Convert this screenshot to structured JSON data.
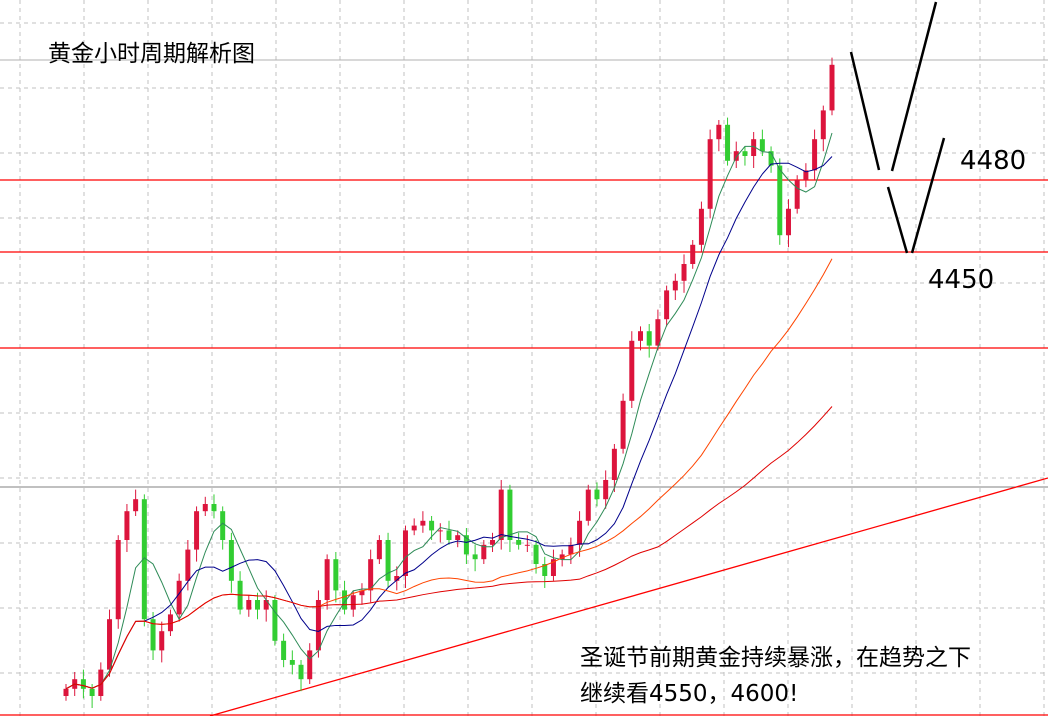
{
  "title": "黄金小时周期解析图",
  "levels": {
    "upper": "4480",
    "lower": "4450"
  },
  "notes": [
    "圣诞节前期黄金持续暴涨，在趋势之下",
    "继续看4550，4600!"
  ],
  "colors": {
    "up": "#dc143c",
    "down": "#32cd32",
    "ma_fast": "#2e8b57",
    "ma_mid": "#00008b",
    "ma_slow": "#ff4500",
    "ma_long": "#e00000",
    "levels": "#ff0000",
    "trendline": "#ff0000"
  },
  "chart_data": {
    "type": "candlestick",
    "title": "黄金小时周期解析图",
    "ylim": [
      4257,
      4555
    ],
    "grid": true,
    "horizontal_levels": [
      4480,
      4450,
      4410
    ],
    "close": [
      4268,
      4272,
      4268,
      4265,
      4276,
      4297,
      4330,
      4342,
      4347,
      4297,
      4284,
      4292,
      4299,
      4313,
      4326,
      4342,
      4345,
      4342,
      4330,
      4313,
      4301,
      4305,
      4301,
      4305,
      4288,
      4280,
      4278,
      4272,
      4284,
      4305,
      4322,
      4309,
      4301,
      4307,
      4309,
      4322,
      4330,
      4313,
      4315,
      4334,
      4336,
      4338,
      4334,
      4334,
      4330,
      4332,
      4324,
      4322,
      4328,
      4330,
      4351,
      4330,
      4328,
      4328,
      4320,
      4315,
      4322,
      4324,
      4328,
      4338,
      4351,
      4347,
      4355,
      4368,
      4388,
      4413,
      4417,
      4411,
      4422,
      4434,
      4438,
      4445,
      4453,
      4468,
      4497,
      4503,
      4488,
      4492,
      4490,
      4497,
      4492,
      4486,
      4457,
      4468,
      4480,
      4484,
      4497,
      4509,
      4528
    ],
    "moving_averages": [
      5,
      10,
      30,
      60
    ]
  }
}
